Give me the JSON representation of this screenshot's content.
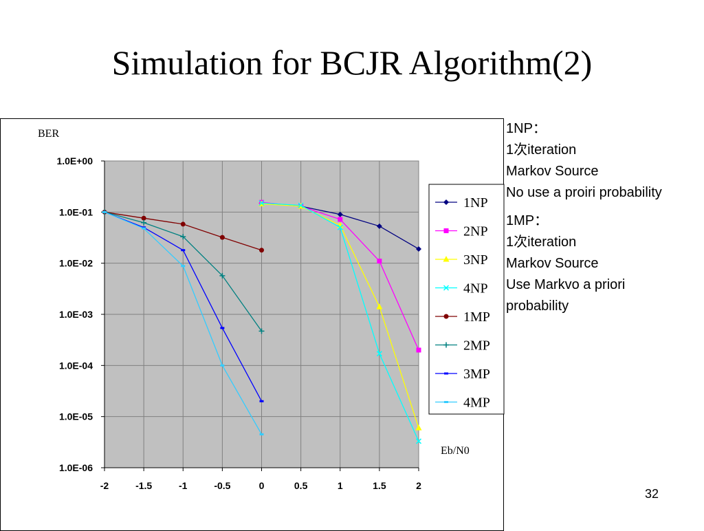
{
  "slide": {
    "title": "Simulation for BCJR Algorithm(2)",
    "page_number": "32"
  },
  "notes": [
    {
      "lines": [
        "1NP：",
        "1次iteration",
        "Markov Source",
        "No use a proiri probability"
      ]
    },
    {
      "lines": [
        "1MP：",
        "1次iteration",
        "Markov Source",
        "Use Markvo a priori probability"
      ]
    }
  ],
  "chart_data": {
    "type": "line",
    "title": "",
    "ylabel": "BER",
    "xlabel": "Eb/N0",
    "yscale": "log",
    "ylim": [
      1e-06,
      1
    ],
    "xlim": [
      -2,
      2
    ],
    "y_tick_labels": [
      "1.0E+00",
      "1.0E-01",
      "1.0E-02",
      "1.0E-03",
      "1.0E-04",
      "1.0E-05",
      "1.0E-06"
    ],
    "x_tick_labels": [
      "-2",
      "-1.5",
      "-1",
      "-0.5",
      "0",
      "0.5",
      "1",
      "1.5",
      "2"
    ],
    "grid": true,
    "plot_background": "#c0c0c0",
    "legend_position": "right",
    "series": [
      {
        "name": "1NP",
        "color": "#000080",
        "marker": "diamond",
        "points": [
          [
            0,
            0.15
          ],
          [
            0.5,
            0.13
          ],
          [
            1,
            0.09
          ],
          [
            1.5,
            0.053
          ],
          [
            2,
            0.019
          ]
        ]
      },
      {
        "name": "2NP",
        "color": "#ff00ff",
        "marker": "square",
        "points": [
          [
            0,
            0.155
          ],
          [
            0.5,
            0.13
          ],
          [
            1,
            0.072
          ],
          [
            1.5,
            0.011
          ],
          [
            2,
            0.0002
          ]
        ]
      },
      {
        "name": "3NP",
        "color": "#ffff00",
        "marker": "triangle",
        "points": [
          [
            0,
            0.145
          ],
          [
            0.5,
            0.13
          ],
          [
            1,
            0.055
          ],
          [
            1.5,
            0.0014
          ],
          [
            2,
            6e-06
          ]
        ]
      },
      {
        "name": "4NP",
        "color": "#00ffff",
        "marker": "x",
        "points": [
          [
            0,
            0.15
          ],
          [
            0.5,
            0.135
          ],
          [
            1,
            0.05
          ],
          [
            1.5,
            0.00017
          ],
          [
            2,
            3.3e-06
          ]
        ]
      },
      {
        "name": "1MP",
        "color": "#800000",
        "marker": "circle",
        "points": [
          [
            -2,
            0.1
          ],
          [
            -1.5,
            0.076
          ],
          [
            -1,
            0.058
          ],
          [
            -0.5,
            0.032
          ],
          [
            0,
            0.018
          ]
        ]
      },
      {
        "name": "2MP",
        "color": "#008080",
        "marker": "plus",
        "points": [
          [
            -2,
            0.1
          ],
          [
            -1.5,
            0.062
          ],
          [
            -1,
            0.033
          ],
          [
            -0.5,
            0.0057
          ],
          [
            0,
            0.00047
          ]
        ]
      },
      {
        "name": "3MP",
        "color": "#0000ff",
        "marker": "dash",
        "points": [
          [
            -2,
            0.1
          ],
          [
            -1.5,
            0.05
          ],
          [
            -1,
            0.018
          ],
          [
            -0.5,
            0.00054
          ],
          [
            0,
            2e-05
          ]
        ]
      },
      {
        "name": "4MP",
        "color": "#33ccff",
        "marker": "dash",
        "points": [
          [
            -2,
            0.1
          ],
          [
            -1.5,
            0.048
          ],
          [
            -1,
            0.0088
          ],
          [
            -0.5,
            0.0001
          ],
          [
            0,
            4.5e-06
          ]
        ]
      }
    ]
  }
}
